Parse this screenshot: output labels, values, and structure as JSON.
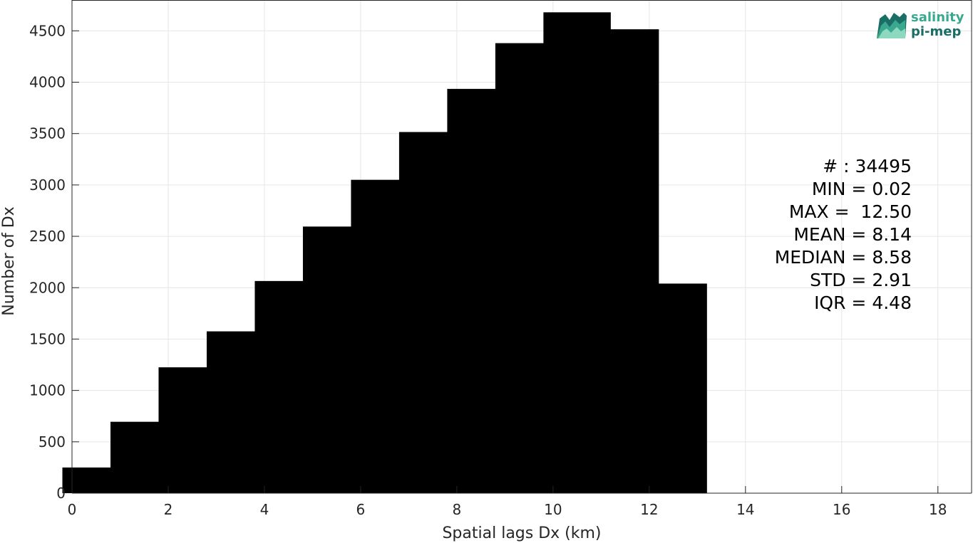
{
  "chart_data": {
    "type": "bar",
    "xlabel": "Spatial lags Dx (km)",
    "ylabel": "Number of Dx",
    "title": "",
    "xlim": [
      0,
      18.7
    ],
    "ylim": [
      0,
      4800
    ],
    "xticks": [
      0,
      2,
      4,
      6,
      8,
      10,
      12,
      14,
      16,
      18
    ],
    "yticks": [
      0,
      500,
      1000,
      1500,
      2000,
      2500,
      3000,
      3500,
      4000,
      4500
    ],
    "grid": true,
    "bar_color": "#000000",
    "bar_width": 1.4,
    "x": [
      0.5,
      1.5,
      2.5,
      3.5,
      4.5,
      5.5,
      6.5,
      7.5,
      8.5,
      9.5,
      10.5,
      11.5,
      12.5
    ],
    "values": [
      250,
      695,
      1225,
      1575,
      2065,
      2595,
      3050,
      3515,
      3935,
      4380,
      4680,
      4515,
      2040
    ]
  },
  "stats": {
    "count": "# : 34495",
    "min": "MIN = 0.02",
    "max": "MAX =  12.50",
    "mean": "MEAN = 8.14",
    "median": "MEDIAN = 8.58",
    "std": "STD = 2.91",
    "iqr": "IQR = 4.48"
  },
  "logo": {
    "line1": "salinity",
    "line2": "pi-mep",
    "colors": [
      "#3aa88f",
      "#1b6e66",
      "#8fd8c0"
    ]
  }
}
